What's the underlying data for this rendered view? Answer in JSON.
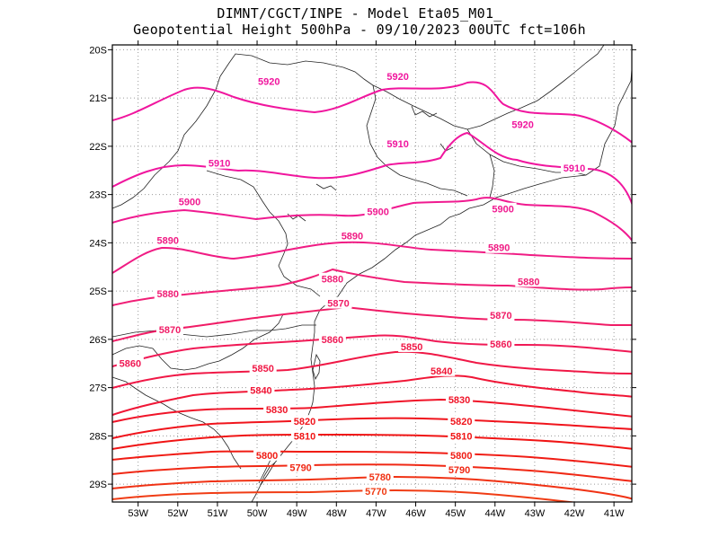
{
  "title": {
    "line1": "DIMNT/CGCT/INPE -  Model Eta05_M01_",
    "line2": "Geopotential Height 500hPa -  09/10/2023 00UTC fct=106h"
  },
  "map": {
    "lon_range": [
      -53.65,
      -40.55
    ],
    "lat_range": [
      -29.37,
      -19.9
    ],
    "x_ticks": [
      {
        "lon": -53,
        "label": "53W"
      },
      {
        "lon": -52,
        "label": "52W"
      },
      {
        "lon": -51,
        "label": "51W"
      },
      {
        "lon": -50,
        "label": "50W"
      },
      {
        "lon": -49,
        "label": "49W"
      },
      {
        "lon": -48,
        "label": "48W"
      },
      {
        "lon": -47,
        "label": "47W"
      },
      {
        "lon": -46,
        "label": "46W"
      },
      {
        "lon": -45,
        "label": "45W"
      },
      {
        "lon": -44,
        "label": "44W"
      },
      {
        "lon": -43,
        "label": "43W"
      },
      {
        "lon": -42,
        "label": "42W"
      },
      {
        "lon": -41,
        "label": "41W"
      }
    ],
    "y_ticks": [
      {
        "lat": -20,
        "label": "20S"
      },
      {
        "lat": -21,
        "label": "21S"
      },
      {
        "lat": -22,
        "label": "22S"
      },
      {
        "lat": -23,
        "label": "23S"
      },
      {
        "lat": -24,
        "label": "24S"
      },
      {
        "lat": -25,
        "label": "25S"
      },
      {
        "lat": -26,
        "label": "26S"
      },
      {
        "lat": -27,
        "label": "27S"
      },
      {
        "lat": -28,
        "label": "28S"
      },
      {
        "lat": -29,
        "label": "29S"
      }
    ],
    "contour_labels": [
      {
        "text": "5920",
        "lon": -49.7,
        "lat": -20.65
      },
      {
        "text": "5920",
        "lon": -46.45,
        "lat": -20.55
      },
      {
        "text": "5920",
        "lon": -43.3,
        "lat": -21.55
      },
      {
        "text": "5910",
        "lon": -46.45,
        "lat": -21.95
      },
      {
        "text": "5910",
        "lon": -50.95,
        "lat": -22.35
      },
      {
        "text": "5910",
        "lon": -42.0,
        "lat": -22.45
      },
      {
        "text": "5900",
        "lon": -51.7,
        "lat": -23.15
      },
      {
        "text": "5900",
        "lon": -46.95,
        "lat": -23.35
      },
      {
        "text": "5900",
        "lon": -43.8,
        "lat": -23.3
      },
      {
        "text": "5890",
        "lon": -52.25,
        "lat": -23.95
      },
      {
        "text": "5890",
        "lon": -47.6,
        "lat": -23.85
      },
      {
        "text": "5890",
        "lon": -43.9,
        "lat": -24.1
      },
      {
        "text": "5880",
        "lon": -48.1,
        "lat": -24.75
      },
      {
        "text": "5880",
        "lon": -52.25,
        "lat": -25.05
      },
      {
        "text": "5880",
        "lon": -43.15,
        "lat": -24.8
      },
      {
        "text": "5870",
        "lon": -47.95,
        "lat": -25.25
      },
      {
        "text": "5870",
        "lon": -52.2,
        "lat": -25.8
      },
      {
        "text": "5870",
        "lon": -43.85,
        "lat": -25.5
      },
      {
        "text": "5860",
        "lon": -48.1,
        "lat": -26.0
      },
      {
        "text": "5860",
        "lon": -53.2,
        "lat": -26.5
      },
      {
        "text": "5860",
        "lon": -43.85,
        "lat": -26.1
      },
      {
        "text": "5850",
        "lon": -46.1,
        "lat": -26.15
      },
      {
        "text": "5850",
        "lon": -49.85,
        "lat": -26.6
      },
      {
        "text": "5840",
        "lon": -45.35,
        "lat": -26.65
      },
      {
        "text": "5840",
        "lon": -49.9,
        "lat": -27.05
      },
      {
        "text": "5830",
        "lon": -44.9,
        "lat": -27.25
      },
      {
        "text": "5830",
        "lon": -49.5,
        "lat": -27.45
      },
      {
        "text": "5820",
        "lon": -48.8,
        "lat": -27.7
      },
      {
        "text": "5820",
        "lon": -44.85,
        "lat": -27.7
      },
      {
        "text": "5810",
        "lon": -48.8,
        "lat": -28.0
      },
      {
        "text": "5810",
        "lon": -44.85,
        "lat": -28.0
      },
      {
        "text": "5800",
        "lon": -49.75,
        "lat": -28.4
      },
      {
        "text": "5800",
        "lon": -44.85,
        "lat": -28.4
      },
      {
        "text": "5790",
        "lon": -48.9,
        "lat": -28.65
      },
      {
        "text": "5790",
        "lon": -44.9,
        "lat": -28.7
      },
      {
        "text": "5780",
        "lon": -46.9,
        "lat": -28.85
      },
      {
        "text": "5770",
        "lon": -47.0,
        "lat": -29.15
      }
    ]
  },
  "colors": {
    "5920": "#f0169e",
    "5910": "#f0169e",
    "5900": "#f01a90",
    "5890": "#f01c84",
    "5880": "#f01e76",
    "5870": "#f01c66",
    "5860": "#f01a56",
    "5850": "#f01846",
    "5840": "#f01636",
    "5830": "#f01428",
    "5820": "#f0141c",
    "5810": "#f01414",
    "5800": "#f01c14",
    "5790": "#f02814",
    "5780": "#f03214",
    "5770": "#f03c14"
  }
}
